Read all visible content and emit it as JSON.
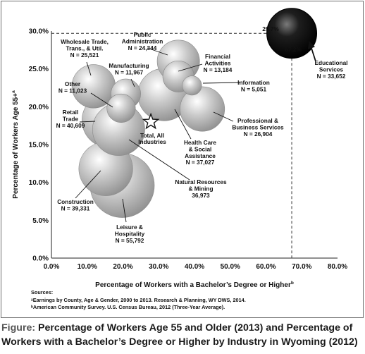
{
  "chart_data": {
    "type": "scatter",
    "xlabel": "Percentage of Workers with a Bachelor’s Degree or Higher",
    "xlabel_sup": "b",
    "ylabel": "Percentage of Workers Age 55+",
    "ylabel_sup": "a",
    "xlim": [
      0,
      80
    ],
    "ylim": [
      0,
      30
    ],
    "x_ticks": [
      "0.0%",
      "10.0%",
      "20.0%",
      "30.0%",
      "40.0%",
      "50.0%",
      "60.0%",
      "70.0%",
      "80.0%"
    ],
    "y_ticks": [
      "0.0%",
      "5.0%",
      "10.0%",
      "15.0%",
      "20.0%",
      "25.0%",
      "30.0%"
    ],
    "grid": false,
    "bubble_size": "N (number of workers)",
    "points": [
      {
        "name": "Educational Services",
        "n": "N = 33,652",
        "x": 67.2,
        "y": 29.7,
        "x_label": "67.2%",
        "y_label": "29.7%",
        "color": "#111111"
      },
      {
        "name": "Public Administration",
        "n": "N = 24,344",
        "x": 35.5,
        "y": 26.0
      },
      {
        "name": "Financial Activities",
        "n": "N = 13,184",
        "x": 35.5,
        "y": 24.0
      },
      {
        "name": "Information",
        "n": "N = 5,051",
        "x": 39.3,
        "y": 22.8
      },
      {
        "name": "Wholesale Trade, Trans., & Util.",
        "n": "N = 25,521",
        "x": 11.8,
        "y": 22.7
      },
      {
        "name": "Manufacturing",
        "n": "N = 11,967",
        "x": 20.8,
        "y": 21.7
      },
      {
        "name": "Other",
        "n": "N = 11,023",
        "x": 19.5,
        "y": 19.8
      },
      {
        "name": "Health Care & Social Assistance",
        "n": "N = 37,027",
        "x": 31.5,
        "y": 21.6
      },
      {
        "name": "Professional & Business Services",
        "n": "N = 26,904",
        "x": 42.2,
        "y": 19.7
      },
      {
        "name": "Retail Trade",
        "n": "N = 40,609",
        "x": 16.2,
        "y": 18.2
      },
      {
        "name": "Natural Resources & Mining",
        "n": "36,973",
        "x": 18.8,
        "y": 17.0
      },
      {
        "name": "Construction",
        "n": "N = 39,331",
        "x": 15.2,
        "y": 11.8
      },
      {
        "name": "Leisure & Hospitality",
        "n": "N = 55,792",
        "x": 19.8,
        "y": 9.6
      }
    ],
    "total": {
      "name": "Total, All Industries",
      "x": 27.8,
      "y": 18.0,
      "marker": "star"
    }
  },
  "sources": {
    "title": "Sources:",
    "a": "ᵃEarnings by County, Age & Gender, 2000 to 2013. Research & Planning, WY DWS, 2014.",
    "b": "ᵇAmerican Community Survey. U.S. Census Bureau, 2012 (Three-Year Average)."
  },
  "caption": {
    "lead": "Figure:",
    "text": " Percentage of Workers Age 55 and Older (2013) and Percentage of Workers with a Bachelor’s Degree or Higher by Industry in Wyoming (2012)"
  }
}
